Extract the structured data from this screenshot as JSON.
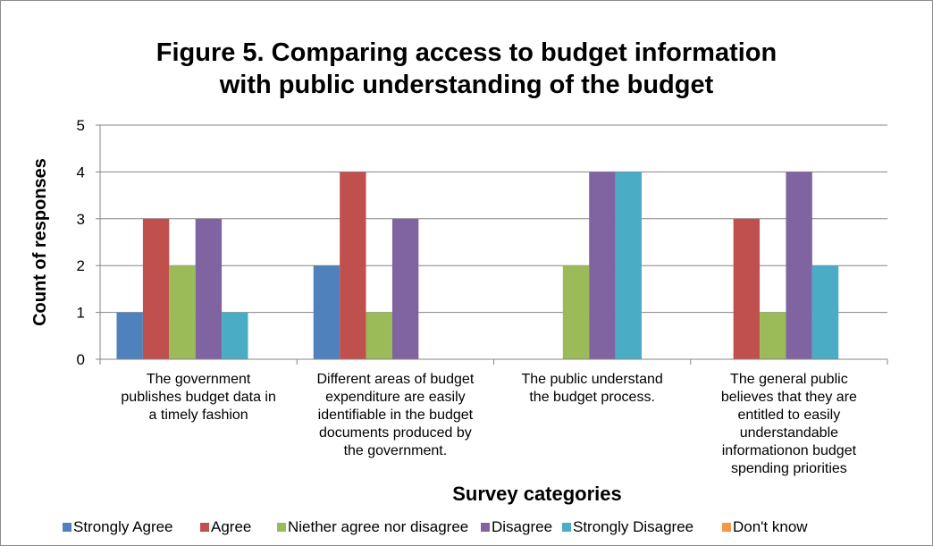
{
  "chart_data": {
    "type": "bar",
    "title": "Figure 5. Comparing access to budget information with public understanding of the budget",
    "title_lines": [
      "Figure 5. Comparing access to budget information",
      "with public understanding of the budget"
    ],
    "xlabel": "Survey categories",
    "ylabel": "Count of responses",
    "ylim": [
      0,
      5
    ],
    "yticks": [
      "0",
      "1",
      "2",
      "3",
      "4",
      "5"
    ],
    "grid": true,
    "legend_position": "bottom",
    "categories": [
      "The government publishes budget data in a timely fashion",
      "Different areas of budget expenditure are easily identifiable in the budget documents produced by the government.",
      "The public understand the budget process.",
      "The general public believes that they are entitled to easily understandable informationon budget spending priorities"
    ],
    "category_label_lines": [
      [
        "The government",
        "publishes budget data in",
        "a timely fashion"
      ],
      [
        "Different areas of budget",
        "expenditure are easily",
        "identifiable in the budget",
        "documents produced by",
        "the government."
      ],
      [
        "The public understand",
        "the budget process."
      ],
      [
        "The general public",
        "believes that they are",
        "entitled to easily",
        "understandable",
        "informationon budget",
        "spending priorities"
      ]
    ],
    "series": [
      {
        "name": "Strongly Agree",
        "color": "#4f81bd",
        "values": [
          1,
          2,
          0,
          0
        ]
      },
      {
        "name": "Agree",
        "color": "#c0504d",
        "values": [
          3,
          4,
          0,
          3
        ]
      },
      {
        "name": "Niether agree nor disagree",
        "color": "#9bbb59",
        "values": [
          2,
          1,
          2,
          1
        ]
      },
      {
        "name": "Disagree",
        "color": "#8064a2",
        "values": [
          3,
          3,
          4,
          4
        ]
      },
      {
        "name": "Strongly Disagree",
        "color": "#4bacc6",
        "values": [
          1,
          0,
          4,
          2
        ]
      },
      {
        "name": "Don't know",
        "color": "#f79646",
        "values": [
          0,
          0,
          0,
          0
        ]
      }
    ]
  }
}
